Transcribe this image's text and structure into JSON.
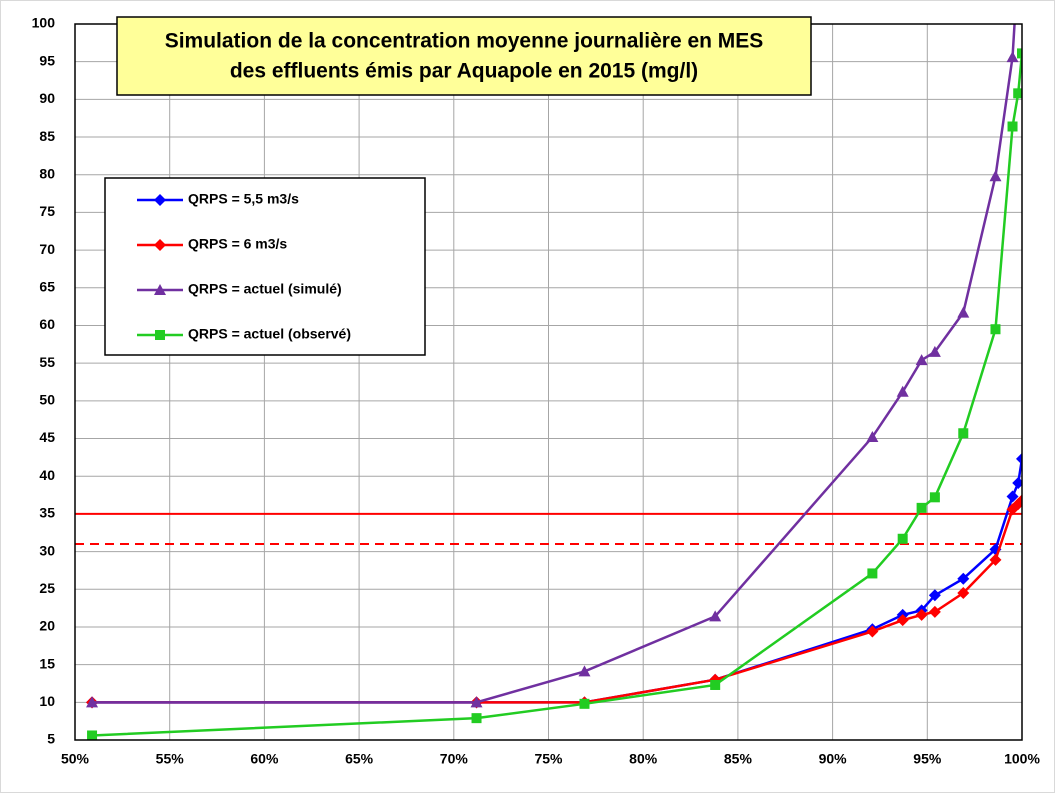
{
  "chart_data": {
    "type": "line",
    "title": [
      "Simulation de la concentration moyenne journalière en MES",
      "des effluents émis par Aquapole en 2015 (mg/l)"
    ],
    "xlim": [
      50,
      100
    ],
    "xticks": [
      {
        "value": 50,
        "label": "50%"
      },
      {
        "value": 55,
        "label": "55%"
      },
      {
        "value": 60,
        "label": "60%"
      },
      {
        "value": 65,
        "label": "65%"
      },
      {
        "value": 70,
        "label": "70%"
      },
      {
        "value": 75,
        "label": "75%"
      },
      {
        "value": 80,
        "label": "80%"
      },
      {
        "value": 85,
        "label": "85%"
      },
      {
        "value": 90,
        "label": "90%"
      },
      {
        "value": 95,
        "label": "95%"
      },
      {
        "value": 100,
        "label": "100%"
      }
    ],
    "ylim": [
      5,
      100
    ],
    "yticks": [
      5,
      10,
      15,
      20,
      25,
      30,
      35,
      40,
      45,
      50,
      55,
      60,
      65,
      70,
      75,
      80,
      85,
      90,
      95,
      100
    ],
    "grid": true,
    "hlines": [
      {
        "value": 35,
        "color": "#ff0000",
        "dashed": false
      },
      {
        "value": 31,
        "color": "#ff0000",
        "dashed": true
      }
    ],
    "series": [
      {
        "name": "QRPS = 5,5 m3/s",
        "color": "#0000ff",
        "marker": "diamond",
        "x": [
          50.9,
          71.2,
          76.9,
          83.8,
          92.1,
          93.7,
          94.7,
          95.4,
          96.9,
          98.6,
          99.5,
          99.8,
          100
        ],
        "values": [
          10,
          10,
          10,
          13,
          19.7,
          21.6,
          22.2,
          24.2,
          26.4,
          30.3,
          37.3,
          39.1,
          42.3
        ]
      },
      {
        "name": "QRPS = 6 m3/s",
        "color": "#ff0000",
        "marker": "diamond",
        "x": [
          50.9,
          71.2,
          76.9,
          83.8,
          92.1,
          93.7,
          94.7,
          95.4,
          96.9,
          98.6,
          99.5,
          99.8,
          100
        ],
        "values": [
          10,
          10,
          10,
          13,
          19.4,
          20.9,
          21.6,
          22,
          24.5,
          28.9,
          35.6,
          36.3,
          36.8
        ]
      },
      {
        "name": "QRPS = actuel (simulé)",
        "color": "#7030a0",
        "marker": "triangle",
        "x": [
          50.9,
          71.2,
          76.9,
          83.8,
          92.1,
          93.7,
          94.7,
          95.4,
          96.9,
          98.6,
          99.5,
          99.8
        ],
        "values": [
          10,
          10,
          14.1,
          21.4,
          45.2,
          51.2,
          55.4,
          56.5,
          61.7,
          79.8,
          95.6,
          108
        ]
      },
      {
        "name": "QRPS = actuel (observé)",
        "color": "#22cc22",
        "marker": "square",
        "x": [
          50.9,
          71.2,
          76.9,
          83.8,
          92.1,
          93.7,
          94.7,
          95.4,
          96.9,
          98.6,
          99.5,
          99.8,
          100
        ],
        "values": [
          5.6,
          7.9,
          9.8,
          12.3,
          27.1,
          31.7,
          35.8,
          37.2,
          45.7,
          59.5,
          86.4,
          90.8,
          96.1
        ]
      }
    ]
  }
}
